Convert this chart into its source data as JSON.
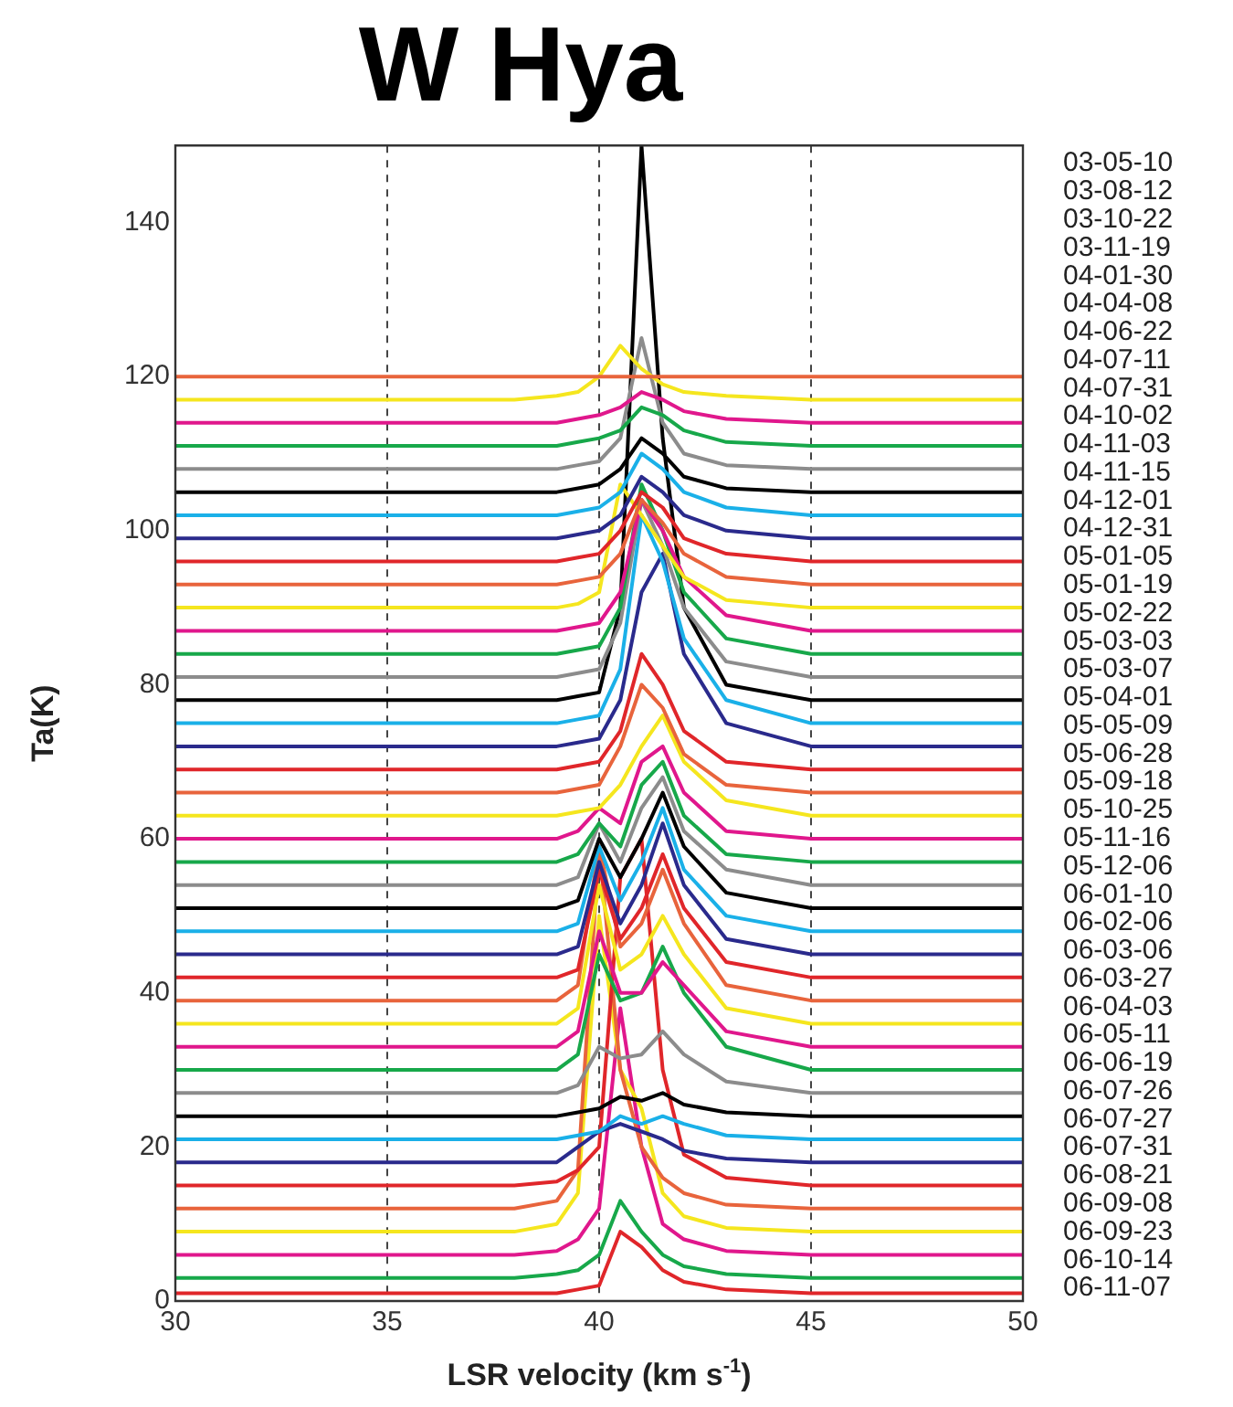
{
  "chart_data": {
    "type": "line",
    "title": "W Hya",
    "xlabel": "LSR velocity (km s$^{-1}$)",
    "ylabel": "Ta(K)",
    "x": [
      30,
      38,
      39,
      39.5,
      40,
      40.5,
      41,
      41.5,
      42,
      43,
      45,
      50
    ],
    "xlim": [
      30,
      50
    ],
    "xticks": [
      30,
      35,
      40,
      45,
      50
    ],
    "ylim": [
      0,
      150
    ],
    "yticks": [
      0,
      20,
      40,
      60,
      80,
      100,
      120,
      140
    ],
    "grid": "x",
    "marker": "none",
    "annotations": [
      "03-05-10",
      "03-08-12",
      "03-10-22",
      "03-11-19",
      "04-01-30",
      "04-04-08",
      "04-06-22",
      "04-07-11",
      "04-07-31",
      "04-10-02",
      "04-11-03",
      "04-11-15",
      "04-12-01",
      "04-12-31",
      "05-01-05",
      "05-01-19",
      "05-02-22",
      "05-03-03",
      "05-03-07",
      "05-04-01",
      "05-05-09",
      "05-06-28",
      "05-09-18",
      "05-10-25",
      "05-11-16",
      "05-12-06",
      "06-01-10",
      "06-02-06",
      "06-03-06",
      "06-03-27",
      "06-04-03",
      "06-05-11",
      "06-06-19",
      "06-07-26",
      "06-07-27",
      "06-07-31",
      "06-08-21",
      "06-09-08",
      "06-09-23",
      "06-10-14",
      "06-11-07"
    ],
    "series": [
      {
        "color": "#e8643c",
        "values": [
          120,
          120,
          120,
          120,
          120,
          120,
          120,
          120,
          120,
          120,
          120,
          120
        ]
      },
      {
        "color": "#f5e61e",
        "values": [
          117,
          117,
          117.5,
          118,
          120,
          124,
          121,
          119,
          118,
          117.5,
          117,
          117
        ]
      },
      {
        "color": "#e0178c",
        "values": [
          114,
          114,
          114,
          114.5,
          115,
          116,
          118,
          117,
          115.5,
          114.5,
          114,
          114
        ]
      },
      {
        "color": "#17a84a",
        "values": [
          111,
          111,
          111,
          111.5,
          112,
          113,
          116,
          115,
          113,
          111.5,
          111,
          111
        ]
      },
      {
        "color": "#8c8c8c",
        "values": [
          108,
          108,
          108,
          108.5,
          109,
          112,
          125,
          114,
          110,
          108.5,
          108,
          108
        ]
      },
      {
        "color": "#000000",
        "values": [
          105,
          105,
          105,
          105.5,
          106,
          108,
          112,
          110,
          107,
          105.5,
          105,
          105
        ]
      },
      {
        "color": "#1ab0e8",
        "values": [
          102,
          102,
          102,
          102.5,
          103,
          105,
          110,
          108,
          105,
          103,
          102,
          102
        ]
      },
      {
        "color": "#2a2a8c",
        "values": [
          99,
          99,
          99,
          99.5,
          100,
          102,
          107,
          105,
          102,
          100,
          99,
          99
        ]
      },
      {
        "color": "#e0262a",
        "values": [
          96,
          96,
          96,
          96.5,
          97,
          100,
          105,
          103,
          99,
          97,
          96,
          96
        ]
      },
      {
        "color": "#e8643c",
        "values": [
          93,
          93,
          93,
          93.5,
          94,
          97,
          104,
          101,
          97,
          94,
          93,
          93
        ]
      },
      {
        "color": "#f5e61e",
        "values": [
          90,
          90,
          90,
          90.5,
          92,
          106,
          102,
          98,
          94,
          91,
          90,
          90
        ]
      },
      {
        "color": "#e0178c",
        "values": [
          87,
          87,
          87,
          87.5,
          88,
          92,
          104,
          100,
          94,
          89,
          87,
          87
        ]
      },
      {
        "color": "#17a84a",
        "values": [
          84,
          84,
          84,
          84.5,
          85,
          90,
          106,
          100,
          92,
          86,
          84,
          84
        ]
      },
      {
        "color": "#8c8c8c",
        "values": [
          81,
          81,
          81,
          81.5,
          82,
          88,
          104,
          98,
          90,
          83,
          81,
          81
        ]
      },
      {
        "color": "#000000",
        "values": [
          78,
          78,
          78,
          78.5,
          79,
          90,
          150,
          112,
          90,
          80,
          78,
          78
        ]
      },
      {
        "color": "#1ab0e8",
        "values": [
          75,
          75,
          75,
          75.5,
          76,
          82,
          102,
          96,
          86,
          78,
          75,
          75
        ]
      },
      {
        "color": "#2a2a8c",
        "values": [
          72,
          72,
          72,
          72.5,
          73,
          78,
          92,
          97,
          84,
          75,
          72,
          72
        ]
      },
      {
        "color": "#e0262a",
        "values": [
          69,
          69,
          69,
          69.5,
          70,
          74,
          84,
          80,
          74,
          70,
          69,
          69
        ]
      },
      {
        "color": "#e8643c",
        "values": [
          66,
          66,
          66,
          66.5,
          67,
          72,
          80,
          77,
          71,
          67,
          66,
          66
        ]
      },
      {
        "color": "#f5e61e",
        "values": [
          63,
          63,
          63,
          63.5,
          64,
          67,
          72,
          76,
          70,
          65,
          63,
          63
        ]
      },
      {
        "color": "#e0178c",
        "values": [
          60,
          60,
          60,
          61,
          64,
          62,
          70,
          72,
          66,
          61,
          60,
          60
        ]
      },
      {
        "color": "#17a84a",
        "values": [
          57,
          57,
          57,
          58,
          62,
          59,
          67,
          70,
          63,
          58,
          57,
          57
        ]
      },
      {
        "color": "#8c8c8c",
        "values": [
          54,
          54,
          54,
          55,
          62,
          57,
          64,
          68,
          61,
          56,
          54,
          54
        ]
      },
      {
        "color": "#000000",
        "values": [
          51,
          51,
          51,
          52,
          60,
          55,
          60,
          66,
          59,
          53,
          51,
          51
        ]
      },
      {
        "color": "#1ab0e8",
        "values": [
          48,
          48,
          48,
          49,
          59,
          52,
          57,
          64,
          56,
          50,
          48,
          48
        ]
      },
      {
        "color": "#2a2a8c",
        "values": [
          45,
          45,
          45,
          46,
          57,
          49,
          54,
          62,
          54,
          47,
          45,
          45
        ]
      },
      {
        "color": "#e0262a",
        "values": [
          42,
          42,
          42,
          43,
          56,
          47,
          51,
          58,
          51,
          44,
          42,
          42
        ]
      },
      {
        "color": "#e8643c",
        "values": [
          39,
          39,
          39,
          41,
          59,
          46,
          49,
          56,
          49,
          41,
          39,
          39
        ]
      },
      {
        "color": "#f5e61e",
        "values": [
          36,
          36,
          36,
          38,
          54,
          43,
          45,
          50,
          45,
          38,
          36,
          36
        ]
      },
      {
        "color": "#e0178c",
        "values": [
          33,
          33,
          33,
          35,
          48,
          40,
          40,
          44,
          41,
          35,
          33,
          33
        ]
      },
      {
        "color": "#17a84a",
        "values": [
          30,
          30,
          30,
          32,
          45,
          39,
          40,
          46,
          40,
          33,
          30,
          30
        ]
      },
      {
        "color": "#8c8c8c",
        "values": [
          27,
          27,
          27,
          28,
          33,
          31.5,
          32,
          35,
          32,
          28.5,
          27,
          27
        ]
      },
      {
        "color": "#000000",
        "values": [
          24,
          24,
          24,
          24.5,
          25,
          26.5,
          26,
          27,
          25.5,
          24.5,
          24,
          24
        ]
      },
      {
        "color": "#1ab0e8",
        "values": [
          21,
          21,
          21,
          21.5,
          22,
          24,
          23,
          24,
          23,
          21.5,
          21,
          21
        ]
      },
      {
        "color": "#2a2a8c",
        "values": [
          18,
          18,
          18,
          20,
          22,
          23,
          22,
          21,
          19.5,
          18.5,
          18,
          18
        ]
      },
      {
        "color": "#e0262a",
        "values": [
          15,
          15,
          15.5,
          17,
          20,
          55,
          60,
          30,
          19,
          16,
          15,
          15
        ]
      },
      {
        "color": "#e8643c",
        "values": [
          12,
          12,
          13,
          17,
          59,
          30,
          20,
          16,
          14,
          12.5,
          12,
          12
        ]
      },
      {
        "color": "#f5e61e",
        "values": [
          9,
          9,
          10,
          14,
          50,
          30,
          25,
          14,
          11,
          9.5,
          9,
          9
        ]
      },
      {
        "color": "#e0178c",
        "values": [
          6,
          6,
          6.5,
          8,
          12,
          38,
          20,
          10,
          8,
          6.5,
          6,
          6
        ]
      },
      {
        "color": "#17a84a",
        "values": [
          3,
          3,
          3.5,
          4,
          6,
          13,
          9,
          6,
          4.5,
          3.5,
          3,
          3
        ]
      },
      {
        "color": "#e0262a",
        "values": [
          1,
          1,
          1,
          1.5,
          2,
          9,
          7,
          4,
          2.5,
          1.5,
          1,
          1
        ]
      }
    ]
  }
}
